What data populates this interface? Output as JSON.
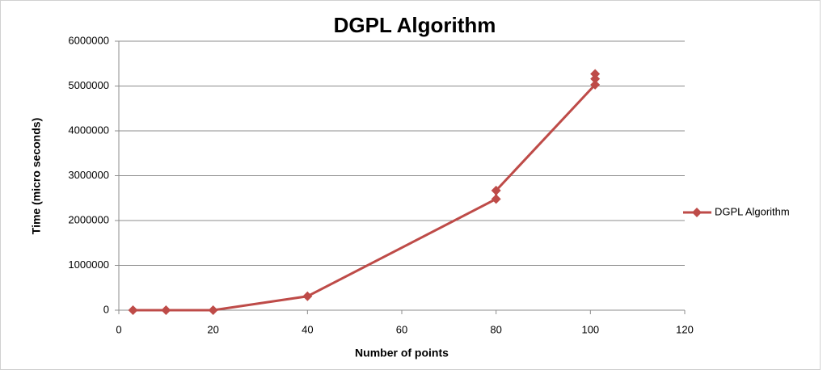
{
  "chart_data": {
    "type": "line",
    "title": "DGPL Algorithm",
    "x_label": "Number of points",
    "y_label": "Time (micro seconds)",
    "series": [
      {
        "name": "DGPL Algorithm",
        "color": "#be4b48",
        "x": [
          3,
          10,
          20,
          40,
          80,
          80,
          101,
          101,
          101
        ],
        "values": [
          0,
          0,
          0,
          310000,
          2480000,
          2670000,
          5030000,
          5160000,
          5270000
        ]
      }
    ],
    "xlim": [
      0,
      120
    ],
    "xticks": [
      0,
      20,
      40,
      60,
      80,
      100,
      120
    ],
    "ylim": [
      0,
      6000000
    ],
    "yticks": [
      0,
      1000000,
      2000000,
      3000000,
      4000000,
      5000000,
      6000000
    ],
    "grid": true,
    "legend": "right"
  }
}
